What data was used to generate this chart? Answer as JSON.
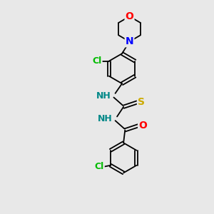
{
  "background_color": "#e8e8e8",
  "bond_color": "#000000",
  "atom_colors": {
    "O": "#ff0000",
    "N": "#0000ff",
    "Cl": "#00bb00",
    "S": "#ccaa00",
    "NH": "#008888"
  },
  "font_size": 9,
  "bond_width": 1.3,
  "fig_width": 3.0,
  "fig_height": 3.0,
  "dpi": 100,
  "xlim": [
    0,
    10
  ],
  "ylim": [
    0,
    14
  ]
}
